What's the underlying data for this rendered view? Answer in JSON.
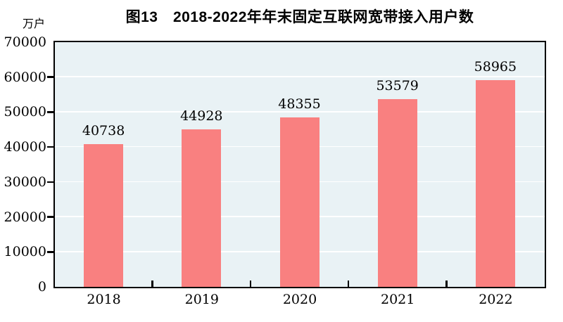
{
  "chart": {
    "title": "图13　2018-2022年年末固定互联网宽带接入用户数",
    "unit_label": "万户"
  },
  "chart_data": {
    "type": "bar",
    "title": "图13　2018-2022年年末固定互联网宽带接入用户数",
    "ylabel_unit": "万户",
    "categories": [
      "2018",
      "2019",
      "2020",
      "2021",
      "2022"
    ],
    "values": [
      40738,
      44928,
      48355,
      53579,
      58965
    ],
    "ylim": [
      0,
      70000
    ],
    "ytick_interval": 10000,
    "ytick_labels": [
      "0",
      "10000",
      "20000",
      "30000",
      "40000",
      "50000",
      "60000",
      "70000"
    ],
    "grid": true,
    "legend": false,
    "colors": {
      "bar": "#F98080",
      "plot_background": "#E9F2F5",
      "gridline": "#FFFFFF",
      "axis": "#000000",
      "text": "#000000"
    }
  }
}
